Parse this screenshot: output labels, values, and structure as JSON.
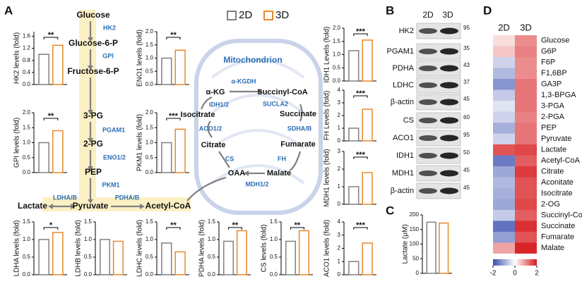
{
  "panels": [
    "A",
    "B",
    "C",
    "D"
  ],
  "legend": [
    {
      "name": "2D",
      "color": "#808080"
    },
    {
      "name": "3D",
      "color": "#e8892b"
    }
  ],
  "pathway": {
    "glycolysis": [
      "Glucose",
      "Glucose-6-P",
      "Fructose-6-P",
      "3-PG",
      "2-PG",
      "PEP",
      "Pyruvate"
    ],
    "enzymes": [
      "HK2",
      "GPI",
      "PGAM1",
      "ENO1/2",
      "PKM1"
    ],
    "branches": {
      "lactate": "Lactate",
      "ldh": "LDHA/B",
      "pdh": "PDHA/B",
      "acetyl": "Acetyl-CoA"
    },
    "mitochondrion": "Mitochondrion",
    "tca_metabolites": [
      "α-KG",
      "Succinyl-CoA",
      "Succinate",
      "Fumarate",
      "Malate",
      "OAA",
      "Citrate",
      "Isocitrate"
    ],
    "tca_enzymes": [
      "α-KGDH",
      "SUCLA2",
      "SDHA/B",
      "FH",
      "MDH1/2",
      "CS",
      "ACO1/2",
      "IDH1/2"
    ]
  },
  "western": {
    "columns": [
      "2D",
      "3D"
    ],
    "rows": [
      "HK2",
      "PGAM1",
      "PDHA",
      "LDHC",
      "β-actin",
      "CS",
      "ACO1",
      "IDH1",
      "MDH1",
      "β-actin"
    ],
    "kda": [
      "95",
      "35",
      "43",
      "37",
      "45",
      "60",
      "95",
      "50",
      "45",
      "45"
    ]
  },
  "chart_data": [
    {
      "type": "bar",
      "ylabel": "HK2 levels (fold)",
      "values": [
        1.0,
        1.3
      ],
      "significance": "**",
      "ylim": [
        0,
        1.75
      ],
      "yticks": [
        {
          "value": 0,
          "label": "0.0"
        },
        {
          "value": 0.4,
          "label": "0.4"
        },
        {
          "value": 0.8,
          "label": "0.8"
        },
        {
          "value": 1.2,
          "label": "1.2"
        },
        {
          "value": 1.6,
          "label": "1.6"
        }
      ]
    },
    {
      "type": "bar",
      "ylabel": "GPI levels (fold)",
      "values": [
        1.0,
        1.4
      ],
      "significance": "**",
      "ylim": [
        0,
        2
      ],
      "yticks": [
        {
          "value": 0,
          "label": "0.0"
        },
        {
          "value": 0.5,
          "label": "0.5"
        },
        {
          "value": 1,
          "label": "1.0"
        },
        {
          "value": 1.5,
          "label": "1.5"
        },
        {
          "value": 2,
          "label": "2.0"
        }
      ]
    },
    {
      "type": "bar",
      "ylabel": "ENO1 levels (fold)",
      "values": [
        1.0,
        1.3
      ],
      "significance": "**",
      "ylim": [
        0,
        2
      ],
      "yticks": [
        {
          "value": 0,
          "label": "0.0"
        },
        {
          "value": 0.5,
          "label": "0.5"
        },
        {
          "value": 1,
          "label": "1.0"
        },
        {
          "value": 1.5,
          "label": "1.5"
        },
        {
          "value": 2,
          "label": "2.0"
        }
      ]
    },
    {
      "type": "bar",
      "ylabel": "PKM1 levels (fold)",
      "values": [
        1.0,
        1.45
      ],
      "significance": "***",
      "ylim": [
        0,
        2
      ],
      "yticks": [
        {
          "value": 0,
          "label": "0.0"
        },
        {
          "value": 0.5,
          "label": "0.5"
        },
        {
          "value": 1,
          "label": "1.0"
        },
        {
          "value": 1.5,
          "label": "1.5"
        },
        {
          "value": 2,
          "label": "2.0"
        }
      ]
    },
    {
      "type": "bar",
      "ylabel": "IDH1 Levels (fold)",
      "values": [
        1.15,
        1.55
      ],
      "significance": "***",
      "ylim": [
        0,
        2
      ],
      "yticks": [
        {
          "value": 0,
          "label": "0.0"
        },
        {
          "value": 0.5,
          "label": "0.5"
        },
        {
          "value": 1,
          "label": "1.0"
        },
        {
          "value": 1.5,
          "label": "1.5"
        },
        {
          "value": 2,
          "label": "2.0"
        }
      ]
    },
    {
      "type": "bar",
      "ylabel": "FH Levels (fold)",
      "values": [
        1.0,
        2.5
      ],
      "significance": "***",
      "ylim": [
        0,
        4
      ],
      "yticks": [
        0,
        1,
        2,
        3,
        4
      ]
    },
    {
      "type": "bar",
      "ylabel": "MDH1 levels (fold)",
      "values": [
        1.0,
        1.8
      ],
      "significance": "***",
      "ylim": [
        0,
        3
      ],
      "yticks": [
        0,
        1,
        2,
        3
      ]
    },
    {
      "type": "bar",
      "ylabel": "LDHA levels (fold)",
      "values": [
        1.0,
        1.2
      ],
      "significance": "*",
      "ylim": [
        0,
        1.5
      ],
      "yticks": [
        {
          "value": 0,
          "label": "0.0"
        },
        {
          "value": 0.5,
          "label": "0.5"
        },
        {
          "value": 1,
          "label": "1.0"
        },
        {
          "value": 1.5,
          "label": "1.5"
        }
      ]
    },
    {
      "type": "bar",
      "ylabel": "LDHB levels (fold)",
      "values": [
        1.0,
        0.95
      ],
      "ylim": [
        0,
        1.5
      ],
      "yticks": [
        {
          "value": 0,
          "label": "0.0"
        },
        {
          "value": 0.5,
          "label": "0.5"
        },
        {
          "value": 1,
          "label": "1.0"
        },
        {
          "value": 1.5,
          "label": "1.5"
        }
      ]
    },
    {
      "type": "bar",
      "ylabel": "LDHC levels (fold)",
      "values": [
        0.9,
        0.65
      ],
      "significance": "**",
      "ylim": [
        0,
        1.5
      ],
      "yticks": [
        {
          "value": 0,
          "label": "0.0"
        },
        {
          "value": 0.5,
          "label": "0.5"
        },
        {
          "value": 1,
          "label": "1.0"
        },
        {
          "value": 1.5,
          "label": "1.5"
        }
      ]
    },
    {
      "type": "bar",
      "ylabel": "PDHA levels (fold)",
      "values": [
        0.95,
        1.25
      ],
      "significance": "**",
      "ylim": [
        0,
        1.5
      ],
      "yticks": [
        {
          "value": 0,
          "label": "0.0"
        },
        {
          "value": 0.5,
          "label": "0.5"
        },
        {
          "value": 1,
          "label": "1.0"
        },
        {
          "value": 1.5,
          "label": "1.5"
        }
      ]
    },
    {
      "type": "bar",
      "ylabel": "CS levels (fold)",
      "values": [
        0.95,
        1.25
      ],
      "significance": "**",
      "ylim": [
        0,
        1.5
      ],
      "yticks": [
        {
          "value": 0,
          "label": "0.0"
        },
        {
          "value": 0.5,
          "label": "0.5"
        },
        {
          "value": 1,
          "label": "1.0"
        },
        {
          "value": 1.5,
          "label": "1.5"
        }
      ]
    },
    {
      "type": "bar",
      "ylabel": "ACO1 levels (fold)",
      "values": [
        1.0,
        2.4
      ],
      "significance": "***",
      "ylim": [
        0,
        4
      ],
      "yticks": [
        0,
        1,
        2,
        3,
        4
      ]
    },
    {
      "type": "bar",
      "ylabel": "Lactate (μM)",
      "values": [
        175,
        172
      ],
      "ylim": [
        0,
        200
      ],
      "yticks": [
        0,
        50,
        100,
        150,
        200
      ]
    },
    {
      "type": "heatmap",
      "columns": [
        "2D",
        "3D"
      ],
      "rows": [
        "Glucose",
        "G6P",
        "F6P",
        "F1,6BP",
        "GA3P",
        "1,3-BPGA",
        "3-PGA",
        "2-PGA",
        "PEP",
        "Pyruvate",
        "Lactate",
        "Acetyl-CoA",
        "Citrate",
        "Aconitate",
        "Isocitrate",
        "2-OG",
        "Succinyl-CoA",
        "Succinate",
        "Fumarate",
        "Malate"
      ],
      "values": [
        [
          0.3,
          1.0
        ],
        [
          0.5,
          1.1
        ],
        [
          -0.5,
          1.0
        ],
        [
          -0.8,
          1.0
        ],
        [
          -1.2,
          1.2
        ],
        [
          -0.6,
          1.2
        ],
        [
          -0.3,
          1.2
        ],
        [
          -0.5,
          1.1
        ],
        [
          -0.9,
          1.2
        ],
        [
          -0.5,
          1.2
        ],
        [
          1.5,
          1.6
        ],
        [
          -1.5,
          1.4
        ],
        [
          -1.0,
          1.7
        ],
        [
          -0.8,
          1.5
        ],
        [
          -0.9,
          1.5
        ],
        [
          -1.0,
          1.6
        ],
        [
          -0.6,
          1.4
        ],
        [
          -1.6,
          1.8
        ],
        [
          -1.1,
          1.5
        ],
        [
          0.8,
          1.9
        ]
      ],
      "colorbar": {
        "lim": [
          -2,
          2
        ],
        "ticks": [
          -2,
          0,
          2
        ],
        "colors": [
          "#3a4fb0",
          "#ffffff",
          "#d7191c"
        ]
      }
    }
  ]
}
